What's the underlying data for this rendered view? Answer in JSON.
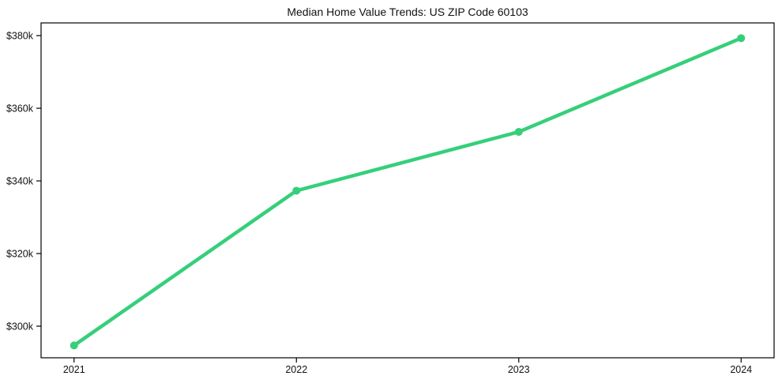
{
  "chart_data": {
    "type": "line",
    "title": "Median Home Value Trends: US ZIP Code 60103",
    "categories": [
      "2021",
      "2022",
      "2023",
      "2024"
    ],
    "values": [
      294700,
      337300,
      353500,
      379300
    ],
    "xlabel": "",
    "ylabel": "",
    "ytick_values": [
      300000,
      320000,
      340000,
      360000,
      380000
    ],
    "ytick_labels": [
      "$300k",
      "$320k",
      "$340k",
      "$360k",
      "$380k"
    ],
    "ylim": [
      291300,
      383500
    ],
    "grid": false,
    "legend": "none",
    "boxed_axes": true,
    "line_color": "#35cf7a",
    "marker": "circle",
    "axis_color": "#000000",
    "text_color": "#111111",
    "background_color": "#ffffff"
  }
}
